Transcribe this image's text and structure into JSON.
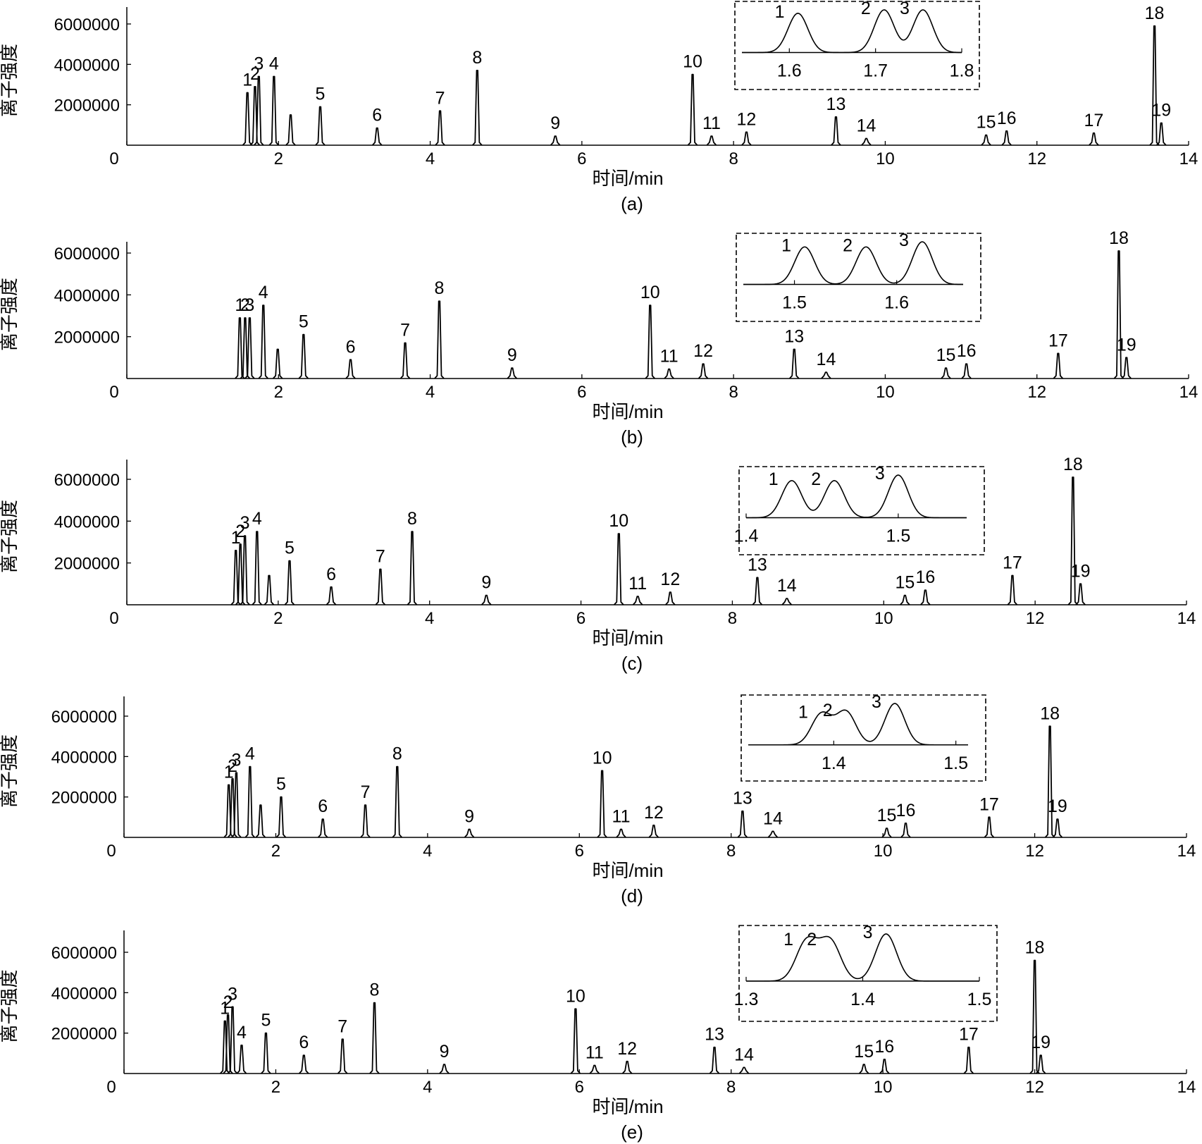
{
  "chart_data": [
    {
      "type": "line",
      "panel_label": "(a)",
      "xlabel": "时间/min",
      "ylabel": "离子强度",
      "xlim": [
        0,
        14
      ],
      "ylim": [
        0,
        7000000
      ],
      "x_ticks": [
        "0",
        "2",
        "4",
        "6",
        "8",
        "10",
        "12",
        "14"
      ],
      "y_ticks": [
        "2000000",
        "4000000",
        "6000000"
      ],
      "peaks": [
        {
          "label": "1",
          "rt": 1.59,
          "height": 2600000
        },
        {
          "label": "2",
          "rt": 1.69,
          "height": 2900000
        },
        {
          "label": "3",
          "rt": 1.74,
          "height": 3400000
        },
        {
          "label": "4",
          "rt": 1.94,
          "height": 3400000
        },
        {
          "label": "",
          "rt": 2.16,
          "height": 1500000
        },
        {
          "label": "5",
          "rt": 2.55,
          "height": 1900000
        },
        {
          "label": "6",
          "rt": 3.3,
          "height": 850000
        },
        {
          "label": "7",
          "rt": 4.13,
          "height": 1700000
        },
        {
          "label": "8",
          "rt": 4.62,
          "height": 3700000
        },
        {
          "label": "9",
          "rt": 5.65,
          "height": 450000
        },
        {
          "label": "10",
          "rt": 7.46,
          "height": 3500000
        },
        {
          "label": "11",
          "rt": 7.71,
          "height": 450000
        },
        {
          "label": "12",
          "rt": 8.17,
          "height": 650000
        },
        {
          "label": "13",
          "rt": 9.35,
          "height": 1400000
        },
        {
          "label": "14",
          "rt": 9.75,
          "height": 330000
        },
        {
          "label": "15",
          "rt": 11.33,
          "height": 500000
        },
        {
          "label": "16",
          "rt": 11.6,
          "height": 700000
        },
        {
          "label": "17",
          "rt": 12.75,
          "height": 600000
        },
        {
          "label": "18",
          "rt": 13.55,
          "height": 5900000
        },
        {
          "label": "19",
          "rt": 13.64,
          "height": 1100000
        }
      ],
      "inset": {
        "x_ticks": [
          "1.6",
          "1.7",
          "1.8"
        ],
        "xlim": [
          1.545,
          1.8
        ],
        "peaks": [
          {
            "label": "1",
            "rt": 1.61,
            "height": 0.92
          },
          {
            "label": "2",
            "rt": 1.71,
            "height": 1.0
          },
          {
            "label": "3",
            "rt": 1.755,
            "height": 1.0
          }
        ]
      }
    },
    {
      "type": "line",
      "panel_label": "(b)",
      "xlabel": "时间/min",
      "ylabel": "离子强度",
      "xlim": [
        0,
        14
      ],
      "ylim": [
        0,
        7000000
      ],
      "x_ticks": [
        "0",
        "2",
        "4",
        "6",
        "8",
        "10",
        "12",
        "14"
      ],
      "y_ticks": [
        "2000000",
        "4000000",
        "6000000"
      ],
      "peaks": [
        {
          "label": "1",
          "rt": 1.49,
          "height": 2900000
        },
        {
          "label": "2",
          "rt": 1.56,
          "height": 2900000
        },
        {
          "label": "3",
          "rt": 1.62,
          "height": 2900000
        },
        {
          "label": "4",
          "rt": 1.8,
          "height": 3500000
        },
        {
          "label": "",
          "rt": 1.99,
          "height": 1400000
        },
        {
          "label": "5",
          "rt": 2.33,
          "height": 2100000
        },
        {
          "label": "6",
          "rt": 2.95,
          "height": 900000
        },
        {
          "label": "7",
          "rt": 3.67,
          "height": 1700000
        },
        {
          "label": "8",
          "rt": 4.12,
          "height": 3700000
        },
        {
          "label": "9",
          "rt": 5.08,
          "height": 500000
        },
        {
          "label": "10",
          "rt": 6.9,
          "height": 3500000
        },
        {
          "label": "11",
          "rt": 7.15,
          "height": 450000
        },
        {
          "label": "12",
          "rt": 7.6,
          "height": 700000
        },
        {
          "label": "13",
          "rt": 8.8,
          "height": 1400000
        },
        {
          "label": "14",
          "rt": 9.22,
          "height": 300000
        },
        {
          "label": "15",
          "rt": 10.8,
          "height": 500000
        },
        {
          "label": "16",
          "rt": 11.07,
          "height": 700000
        },
        {
          "label": "17",
          "rt": 12.28,
          "height": 1200000
        },
        {
          "label": "18",
          "rt": 13.08,
          "height": 6100000
        },
        {
          "label": "19",
          "rt": 13.18,
          "height": 1000000
        }
      ],
      "inset": {
        "x_ticks": [
          "1.5",
          "1.6"
        ],
        "xlim": [
          1.45,
          1.665
        ],
        "peaks": [
          {
            "label": "1",
            "rt": 1.51,
            "height": 0.88
          },
          {
            "label": "2",
            "rt": 1.57,
            "height": 0.88
          },
          {
            "label": "3",
            "rt": 1.625,
            "height": 1.0
          }
        ]
      }
    },
    {
      "type": "line",
      "panel_label": "(c)",
      "xlabel": "时间/min",
      "ylabel": "离子强度",
      "xlim": [
        0,
        14
      ],
      "ylim": [
        0,
        7000000
      ],
      "x_ticks": [
        "0",
        "2",
        "4",
        "6",
        "8",
        "10",
        "12",
        "14"
      ],
      "y_ticks": [
        "2000000",
        "4000000",
        "6000000"
      ],
      "peaks": [
        {
          "label": "1",
          "rt": 1.44,
          "height": 2600000
        },
        {
          "label": "2",
          "rt": 1.5,
          "height": 2900000
        },
        {
          "label": "3",
          "rt": 1.56,
          "height": 3300000
        },
        {
          "label": "4",
          "rt": 1.72,
          "height": 3500000
        },
        {
          "label": "",
          "rt": 1.88,
          "height": 1400000
        },
        {
          "label": "5",
          "rt": 2.15,
          "height": 2100000
        },
        {
          "label": "6",
          "rt": 2.7,
          "height": 850000
        },
        {
          "label": "7",
          "rt": 3.35,
          "height": 1700000
        },
        {
          "label": "8",
          "rt": 3.77,
          "height": 3500000
        },
        {
          "label": "9",
          "rt": 4.75,
          "height": 450000
        },
        {
          "label": "10",
          "rt": 6.5,
          "height": 3400000
        },
        {
          "label": "11",
          "rt": 6.75,
          "height": 400000
        },
        {
          "label": "12",
          "rt": 7.18,
          "height": 600000
        },
        {
          "label": "13",
          "rt": 8.33,
          "height": 1300000
        },
        {
          "label": "14",
          "rt": 8.72,
          "height": 300000
        },
        {
          "label": "15",
          "rt": 10.28,
          "height": 450000
        },
        {
          "label": "16",
          "rt": 10.55,
          "height": 700000
        },
        {
          "label": "17",
          "rt": 11.7,
          "height": 1400000
        },
        {
          "label": "18",
          "rt": 12.5,
          "height": 6100000
        },
        {
          "label": "19",
          "rt": 12.6,
          "height": 1000000
        }
      ],
      "inset": {
        "x_ticks": [
          "1.4",
          "1.5"
        ],
        "xlim": [
          1.4,
          1.545
        ],
        "peaks": [
          {
            "label": "1",
            "rt": 1.43,
            "height": 0.87
          },
          {
            "label": "2",
            "rt": 1.458,
            "height": 0.87
          },
          {
            "label": "3",
            "rt": 1.5,
            "height": 1.0
          }
        ]
      }
    },
    {
      "type": "line",
      "panel_label": "(d)",
      "xlabel": "时间/min",
      "ylabel": "离子强度",
      "xlim": [
        0,
        14
      ],
      "ylim": [
        0,
        7000000
      ],
      "x_ticks": [
        "0",
        "2",
        "4",
        "6",
        "8",
        "10",
        "12",
        "14"
      ],
      "y_ticks": [
        "2000000",
        "4000000",
        "6000000"
      ],
      "peaks": [
        {
          "label": "1",
          "rt": 1.38,
          "height": 2600000
        },
        {
          "label": "2",
          "rt": 1.43,
          "height": 2900000
        },
        {
          "label": "3",
          "rt": 1.48,
          "height": 3200000
        },
        {
          "label": "4",
          "rt": 1.66,
          "height": 3500000
        },
        {
          "label": "",
          "rt": 1.8,
          "height": 1600000
        },
        {
          "label": "5",
          "rt": 2.07,
          "height": 2000000
        },
        {
          "label": "6",
          "rt": 2.62,
          "height": 900000
        },
        {
          "label": "7",
          "rt": 3.18,
          "height": 1600000
        },
        {
          "label": "8",
          "rt": 3.6,
          "height": 3500000
        },
        {
          "label": "9",
          "rt": 4.55,
          "height": 400000
        },
        {
          "label": "10",
          "rt": 6.3,
          "height": 3300000
        },
        {
          "label": "11",
          "rt": 6.55,
          "height": 400000
        },
        {
          "label": "12",
          "rt": 6.98,
          "height": 600000
        },
        {
          "label": "13",
          "rt": 8.15,
          "height": 1300000
        },
        {
          "label": "14",
          "rt": 8.55,
          "height": 300000
        },
        {
          "label": "15",
          "rt": 10.05,
          "height": 450000
        },
        {
          "label": "16",
          "rt": 10.3,
          "height": 700000
        },
        {
          "label": "17",
          "rt": 11.4,
          "height": 1000000
        },
        {
          "label": "18",
          "rt": 12.2,
          "height": 5500000
        },
        {
          "label": "19",
          "rt": 12.3,
          "height": 900000
        }
      ],
      "inset": {
        "x_ticks": [
          "1.4",
          "1.5"
        ],
        "xlim": [
          1.33,
          1.51
        ],
        "peaks": [
          {
            "label": "1",
            "rt": 1.39,
            "height": 0.75
          },
          {
            "label": "2",
            "rt": 1.41,
            "height": 0.8
          },
          {
            "label": "3",
            "rt": 1.45,
            "height": 1.0
          }
        ]
      }
    },
    {
      "type": "line",
      "panel_label": "(e)",
      "xlabel": "时间/min",
      "ylabel": "离子强度",
      "xlim": [
        0,
        14
      ],
      "ylim": [
        0,
        7000000
      ],
      "x_ticks": [
        "0",
        "2",
        "4",
        "6",
        "8",
        "10",
        "12",
        "14"
      ],
      "y_ticks": [
        "2000000",
        "4000000",
        "6000000"
      ],
      "peaks": [
        {
          "label": "1",
          "rt": 1.33,
          "height": 2600000
        },
        {
          "label": "2",
          "rt": 1.37,
          "height": 2900000
        },
        {
          "label": "3",
          "rt": 1.43,
          "height": 3300000
        },
        {
          "label": "4",
          "rt": 1.55,
          "height": 1400000
        },
        {
          "label": "5",
          "rt": 1.87,
          "height": 2000000
        },
        {
          "label": "6",
          "rt": 2.37,
          "height": 900000
        },
        {
          "label": "7",
          "rt": 2.88,
          "height": 1700000
        },
        {
          "label": "8",
          "rt": 3.3,
          "height": 3500000
        },
        {
          "label": "9",
          "rt": 4.22,
          "height": 450000
        },
        {
          "label": "10",
          "rt": 5.95,
          "height": 3200000
        },
        {
          "label": "11",
          "rt": 6.2,
          "height": 400000
        },
        {
          "label": "12",
          "rt": 6.63,
          "height": 600000
        },
        {
          "label": "13",
          "rt": 7.78,
          "height": 1300000
        },
        {
          "label": "14",
          "rt": 8.17,
          "height": 300000
        },
        {
          "label": "15",
          "rt": 9.75,
          "height": 450000
        },
        {
          "label": "16",
          "rt": 10.02,
          "height": 700000
        },
        {
          "label": "17",
          "rt": 11.13,
          "height": 1300000
        },
        {
          "label": "18",
          "rt": 12.0,
          "height": 5600000
        },
        {
          "label": "19",
          "rt": 12.08,
          "height": 900000
        }
      ],
      "inset": {
        "x_ticks": [
          "1.3",
          "1.4",
          "1.5"
        ],
        "xlim": [
          1.3,
          1.5
        ],
        "peaks": [
          {
            "label": "1",
            "rt": 1.352,
            "height": 0.85
          },
          {
            "label": "2",
            "rt": 1.372,
            "height": 0.85
          },
          {
            "label": "3",
            "rt": 1.42,
            "height": 1.0
          }
        ]
      }
    }
  ]
}
